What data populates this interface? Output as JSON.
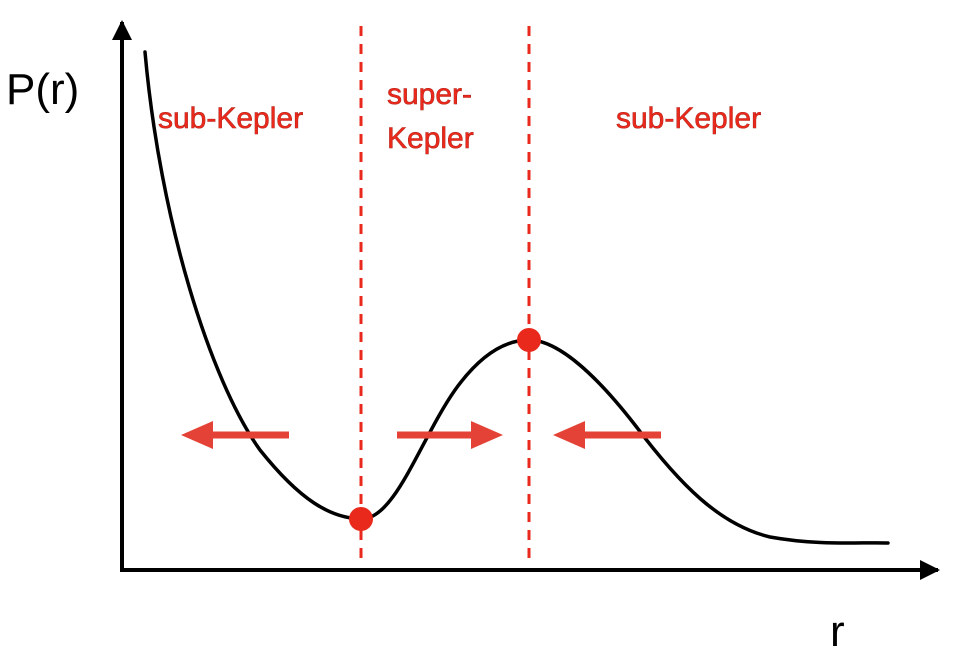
{
  "axes": {
    "y_label": "P(r)",
    "x_label": "r"
  },
  "regions": [
    {
      "label_lines": [
        "sub-Kepler"
      ]
    },
    {
      "label_lines": [
        "super-",
        "Kepler"
      ]
    },
    {
      "label_lines": [
        "sub-Kepler"
      ]
    }
  ],
  "arrows": [
    {
      "direction": "left"
    },
    {
      "direction": "right"
    },
    {
      "direction": "left"
    }
  ],
  "fixed_points": [
    {
      "kind": "pressure-minimum"
    },
    {
      "kind": "pressure-maximum"
    }
  ],
  "colors": {
    "curve": "#000000",
    "axes": "#000000",
    "accent": "#e8291c",
    "boundary": "#e8291c",
    "arrow": "#e44236",
    "dot": "#e8291c"
  }
}
